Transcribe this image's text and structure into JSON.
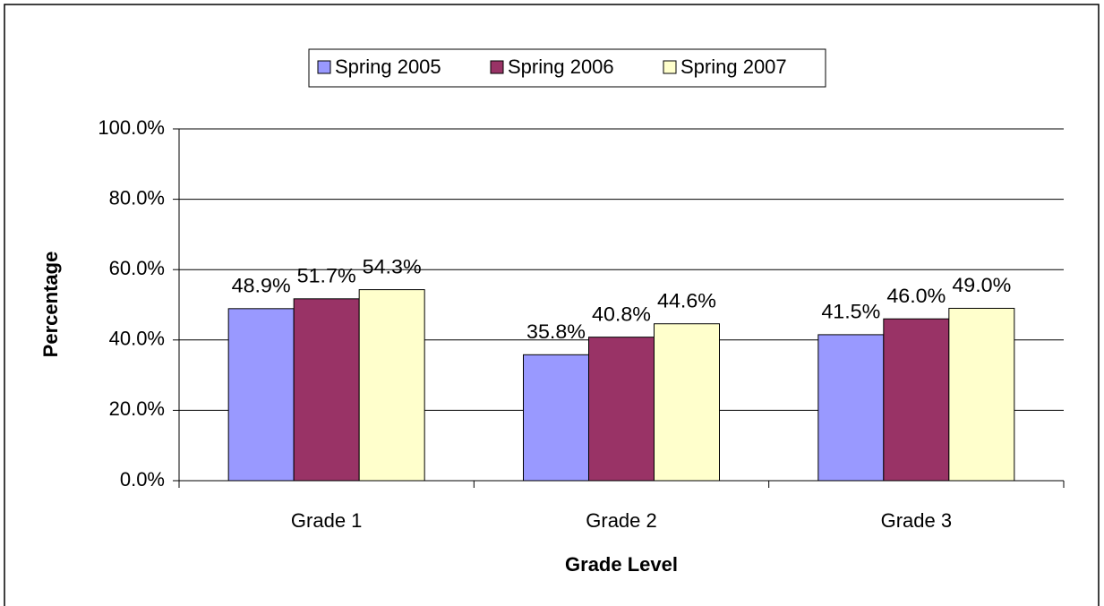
{
  "chart_data": {
    "type": "bar",
    "xlabel": "Grade Level",
    "ylabel": "Percentage",
    "categories": [
      "Grade 1",
      "Grade 2",
      "Grade 3"
    ],
    "series": [
      {
        "name": "Spring 2005",
        "color": "#9999ff",
        "values": [
          48.9,
          35.8,
          41.5
        ],
        "value_labels": [
          "48.9%",
          "35.8%",
          "41.5%"
        ]
      },
      {
        "name": "Spring 2006",
        "color": "#993366",
        "values": [
          51.7,
          40.8,
          46.0
        ],
        "value_labels": [
          "51.7%",
          "40.8%",
          "46.0%"
        ]
      },
      {
        "name": "Spring 2007",
        "color": "#ffffcc",
        "values": [
          54.3,
          44.6,
          49.0
        ],
        "value_labels": [
          "54.3%",
          "44.6%",
          "49.0%"
        ]
      }
    ],
    "ylim": [
      0,
      100
    ],
    "yticks": [
      {
        "value": 0,
        "label": "0.0%"
      },
      {
        "value": 20,
        "label": "20.0%"
      },
      {
        "value": 40,
        "label": "40.0%"
      },
      {
        "value": 60,
        "label": "60.0%"
      },
      {
        "value": 80,
        "label": "80.0%"
      },
      {
        "value": 100,
        "label": "100.0%"
      }
    ],
    "grid": true,
    "legend": "top"
  }
}
